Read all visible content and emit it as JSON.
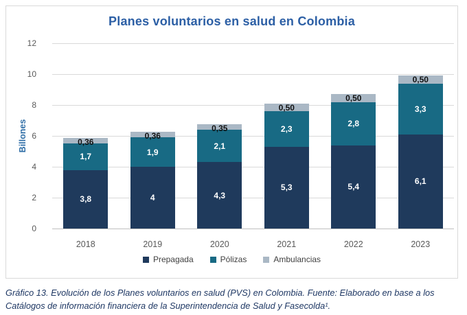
{
  "title": "Planes voluntarios en salud en Colombia",
  "caption": "Gráfico 13. Evolución de los Planes voluntarios en salud (PVS) en Colombia.  Fuente: Elaborado en base a los Catálogos de información financiera de la Superintendencia de Salud y Fasecolda¹.",
  "colors": {
    "title": "#2c5fa5",
    "ylab": "#2e6da6",
    "axis": "#595959",
    "legend": "#404040",
    "caption": "#1f3864",
    "grid": "#d9d9d9",
    "border": "#d9d9d9"
  },
  "chart_data": {
    "type": "bar",
    "stacked": true,
    "title": "Planes voluntarios en salud en Colombia",
    "categories": [
      "2018",
      "2019",
      "2020",
      "2021",
      "2022",
      "2023"
    ],
    "series": [
      {
        "name": "Prepagada",
        "color": "#1f3a5c",
        "label_color": "#ffffff",
        "values": [
          3.8,
          4,
          4.3,
          5.3,
          5.4,
          6.1
        ],
        "labels": [
          "3,8",
          "4",
          "4,3",
          "5,3",
          "5,4",
          "6,1"
        ]
      },
      {
        "name": "Pólizas",
        "color": "#186a84",
        "label_color": "#ffffff",
        "values": [
          1.7,
          1.9,
          2.1,
          2.3,
          2.8,
          3.3
        ],
        "labels": [
          "1,7",
          "1,9",
          "2,1",
          "2,3",
          "2,8",
          "3,3"
        ]
      },
      {
        "name": "Ambulancias",
        "color": "#aab8c5",
        "label_color": "#111111",
        "values": [
          0.36,
          0.36,
          0.35,
          0.5,
          0.5,
          0.5
        ],
        "labels": [
          "0,36",
          "0,36",
          "0,35",
          "0,50",
          "0,50",
          "0,50"
        ]
      }
    ],
    "xlabel": "",
    "ylabel": "Billones",
    "ylim": [
      0,
      12
    ],
    "yticks": [
      0,
      2,
      4,
      6,
      8,
      10,
      12
    ],
    "grid": true,
    "legend_position": "bottom"
  }
}
